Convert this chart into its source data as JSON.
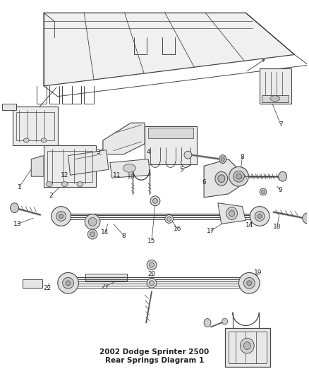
{
  "title": "2002 Dodge Sprinter 2500\nRear Springs Diagram 1",
  "bg_color": "#ffffff",
  "line_color": "#444444",
  "text_color": "#222222",
  "figsize": [
    4.38,
    5.33
  ],
  "dpi": 100,
  "annotation_color": "#333333",
  "font_size_label": 6.5,
  "font_size_title": 7.5
}
